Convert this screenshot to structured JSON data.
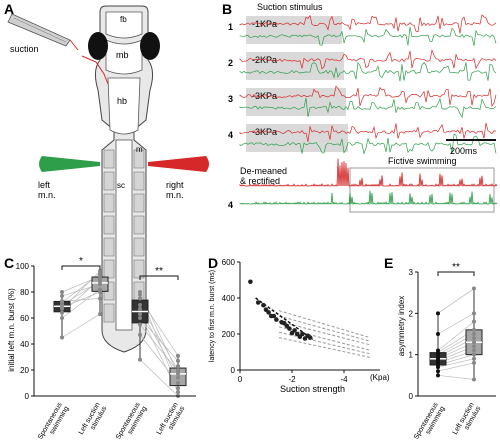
{
  "panels": {
    "A": {
      "letter": "A",
      "labels": {
        "fb": "fb",
        "mb": "mb",
        "hb": "hb",
        "sc": "sc",
        "m": "m",
        "suction": "suction",
        "left_mn": "left\nm.n.",
        "right_mn": "right\nm.n."
      }
    },
    "B": {
      "letter": "B",
      "stimulus_title": "Suction stimulus",
      "rows": [
        {
          "index": "1",
          "pressure": "-1KPa"
        },
        {
          "index": "2",
          "pressure": "-2KPa"
        },
        {
          "index": "3",
          "pressure": "-3KPa"
        },
        {
          "index": "4",
          "pressure": "-3KPa"
        }
      ],
      "scale_bar": "200ms",
      "demeaned_label": "De-meaned\n& rectified",
      "fictive_label": "Fictive swimming",
      "bottom_index": "4"
    },
    "C": {
      "letter": "C",
      "ylabel": "initial left m.n. burst (%)",
      "yticks": [
        "0",
        "20",
        "40",
        "60",
        "80",
        "100"
      ],
      "xlabels": [
        "Spontaneous\nswimming",
        "Left suction\nstimulus",
        "Spontaneous\nswimming",
        "Left suction\nstimulus"
      ],
      "sig1": "*",
      "sig2": "**"
    },
    "D": {
      "letter": "D",
      "ylabel": "latency to first m.n. burst (ms)",
      "yticks": [
        "0",
        "200",
        "400",
        "600"
      ],
      "xticks": [
        "0",
        "-2",
        "-4"
      ],
      "xunit": "(Kpa)",
      "xlabel": "Suction strength"
    },
    "E": {
      "letter": "E",
      "ylabel": "asymmetry index",
      "yticks": [
        "0",
        "1",
        "2",
        "3"
      ],
      "xlabels": [
        "Spontaneous\nswimming",
        "Left suction\nstimulus"
      ],
      "sig": "**"
    }
  },
  "colors": {
    "red": "#d62828",
    "green": "#2e9e4a",
    "shade": "#d9d9d9",
    "dark_box": "#333333",
    "light_box": "#a6a6a6"
  },
  "chart_data": [
    {
      "type": "box",
      "panel": "C",
      "ylabel": "initial left m.n. burst (%)",
      "ylim": [
        0,
        100
      ],
      "groups": [
        {
          "category": "Spontaneous swimming",
          "values": [
            45,
            60,
            64,
            67,
            68,
            70,
            72,
            73,
            77,
            80
          ]
        },
        {
          "category": "Left suction stimulus",
          "values": [
            63,
            75,
            80,
            82,
            86,
            88,
            90,
            92,
            94,
            96
          ]
        },
        {
          "category": "Spontaneous swimming",
          "values": [
            28,
            47,
            55,
            60,
            63,
            67,
            70,
            75,
            78,
            80
          ]
        },
        {
          "category": "Left suction stimulus",
          "values": [
            0,
            3,
            6,
            10,
            14,
            17,
            19,
            20,
            23,
            27,
            31
          ]
        }
      ]
    },
    {
      "type": "scatter",
      "panel": "D",
      "xlabel": "Suction strength",
      "ylabel": "latency to first m.n. burst (ms)",
      "xlim": [
        0,
        -5
      ],
      "ylim": [
        0,
        600
      ],
      "x": [
        -0.4,
        -0.7,
        -0.9,
        -1.0,
        -1.1,
        -1.2,
        -1.3,
        -1.4,
        -1.6,
        -1.7,
        -1.8,
        -1.9,
        -2.0,
        -2.1,
        -2.2,
        -2.3,
        -2.4,
        -2.5,
        -2.6,
        -2.7
      ],
      "y": [
        490,
        375,
        360,
        335,
        320,
        300,
        300,
        280,
        265,
        260,
        245,
        230,
        205,
        220,
        200,
        185,
        200,
        175,
        190,
        180
      ]
    },
    {
      "type": "box",
      "panel": "E",
      "ylabel": "asymmetry index",
      "ylim": [
        0,
        3
      ],
      "groups": [
        {
          "category": "Spontaneous swimming",
          "values": [
            0.5,
            0.6,
            0.7,
            0.75,
            0.8,
            0.85,
            0.9,
            0.95,
            1.0,
            1.05,
            1.1,
            1.5,
            2.0
          ]
        },
        {
          "category": "Left suction stimulus",
          "values": [
            0.4,
            0.8,
            0.9,
            1.0,
            1.1,
            1.2,
            1.3,
            1.4,
            1.5,
            1.6,
            1.8,
            2.0,
            2.6
          ]
        }
      ]
    }
  ]
}
